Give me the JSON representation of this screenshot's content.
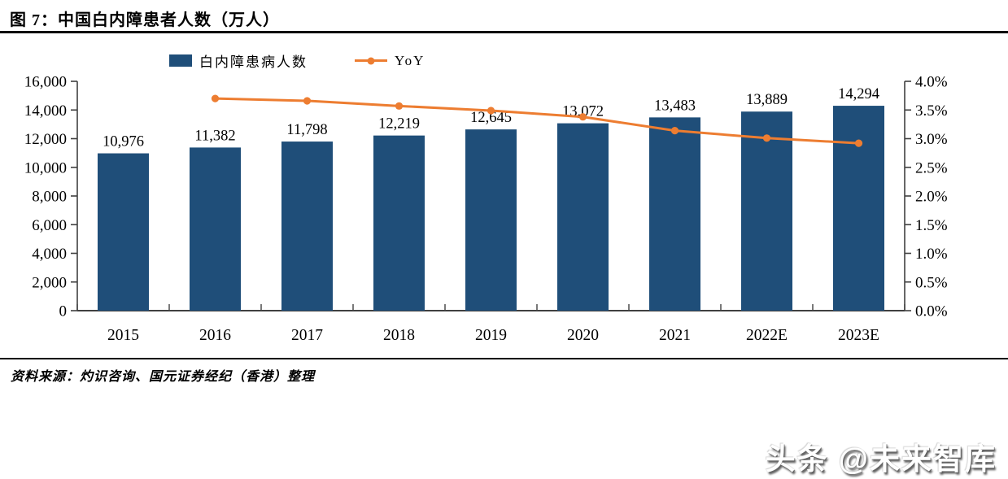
{
  "title": "图 7：中国白内障患者人数（万人）",
  "legend": {
    "bar_label": "白内障患病人数",
    "line_label": "YoY"
  },
  "source": "资料来源：灼识咨询、国元证券经纪（香港）整理",
  "watermark": "头条 @未来智库",
  "colors": {
    "bar": "#1F4E79",
    "line": "#ED7D31",
    "axis": "#404040",
    "text": "#000000"
  },
  "chart_data": {
    "type": "bar",
    "subtype": "bar-with-line-overlay",
    "title": "中国白内障患者人数（万人）",
    "categories": [
      "2015",
      "2016",
      "2017",
      "2018",
      "2019",
      "2020",
      "2021",
      "2022E",
      "2023E"
    ],
    "series": [
      {
        "name": "白内障患病人数",
        "type": "bar",
        "axis": "left",
        "color": "#1F4E79",
        "values": [
          10976,
          11382,
          11798,
          12219,
          12645,
          13072,
          13483,
          13889,
          14294
        ],
        "labels": [
          "10,976",
          "11,382",
          "11,798",
          "12,219",
          "12,645",
          "13,072",
          "13,483",
          "13,889",
          "14,294"
        ]
      },
      {
        "name": "YoY",
        "type": "line",
        "axis": "right",
        "color": "#ED7D31",
        "values": [
          null,
          3.7,
          3.66,
          3.57,
          3.49,
          3.38,
          3.14,
          3.01,
          2.92
        ]
      }
    ],
    "left_axis": {
      "min": 0,
      "max": 16000,
      "step": 2000,
      "tick_labels": [
        "0",
        "2,000",
        "4,000",
        "6,000",
        "8,000",
        "10,000",
        "12,000",
        "14,000",
        "16,000"
      ]
    },
    "right_axis": {
      "min": 0,
      "max": 4.0,
      "step": 0.5,
      "tick_labels": [
        "0.0%",
        "0.5%",
        "1.0%",
        "1.5%",
        "2.0%",
        "2.5%",
        "3.0%",
        "3.5%",
        "4.0%"
      ]
    },
    "grid": false,
    "legend_position": "top"
  }
}
